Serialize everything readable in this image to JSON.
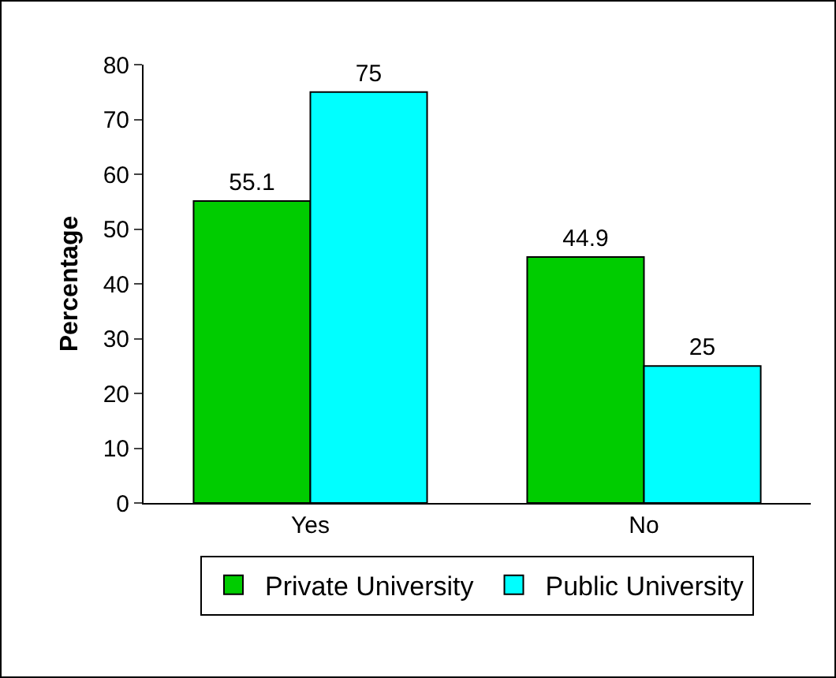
{
  "chart_data": {
    "type": "bar",
    "ylabel": "Percentage",
    "categories": [
      "Yes",
      "No"
    ],
    "series": [
      {
        "name": "Private University",
        "color": "#00cc00",
        "values": [
          55.1,
          44.9
        ]
      },
      {
        "name": "Public University",
        "color": "#00ffff",
        "values": [
          75,
          25
        ]
      }
    ],
    "ylim": [
      0,
      80
    ],
    "yticks": [
      0,
      10,
      20,
      30,
      40,
      50,
      60,
      70,
      80
    ],
    "grid": false,
    "legend": "bottom",
    "data_labels": true
  }
}
